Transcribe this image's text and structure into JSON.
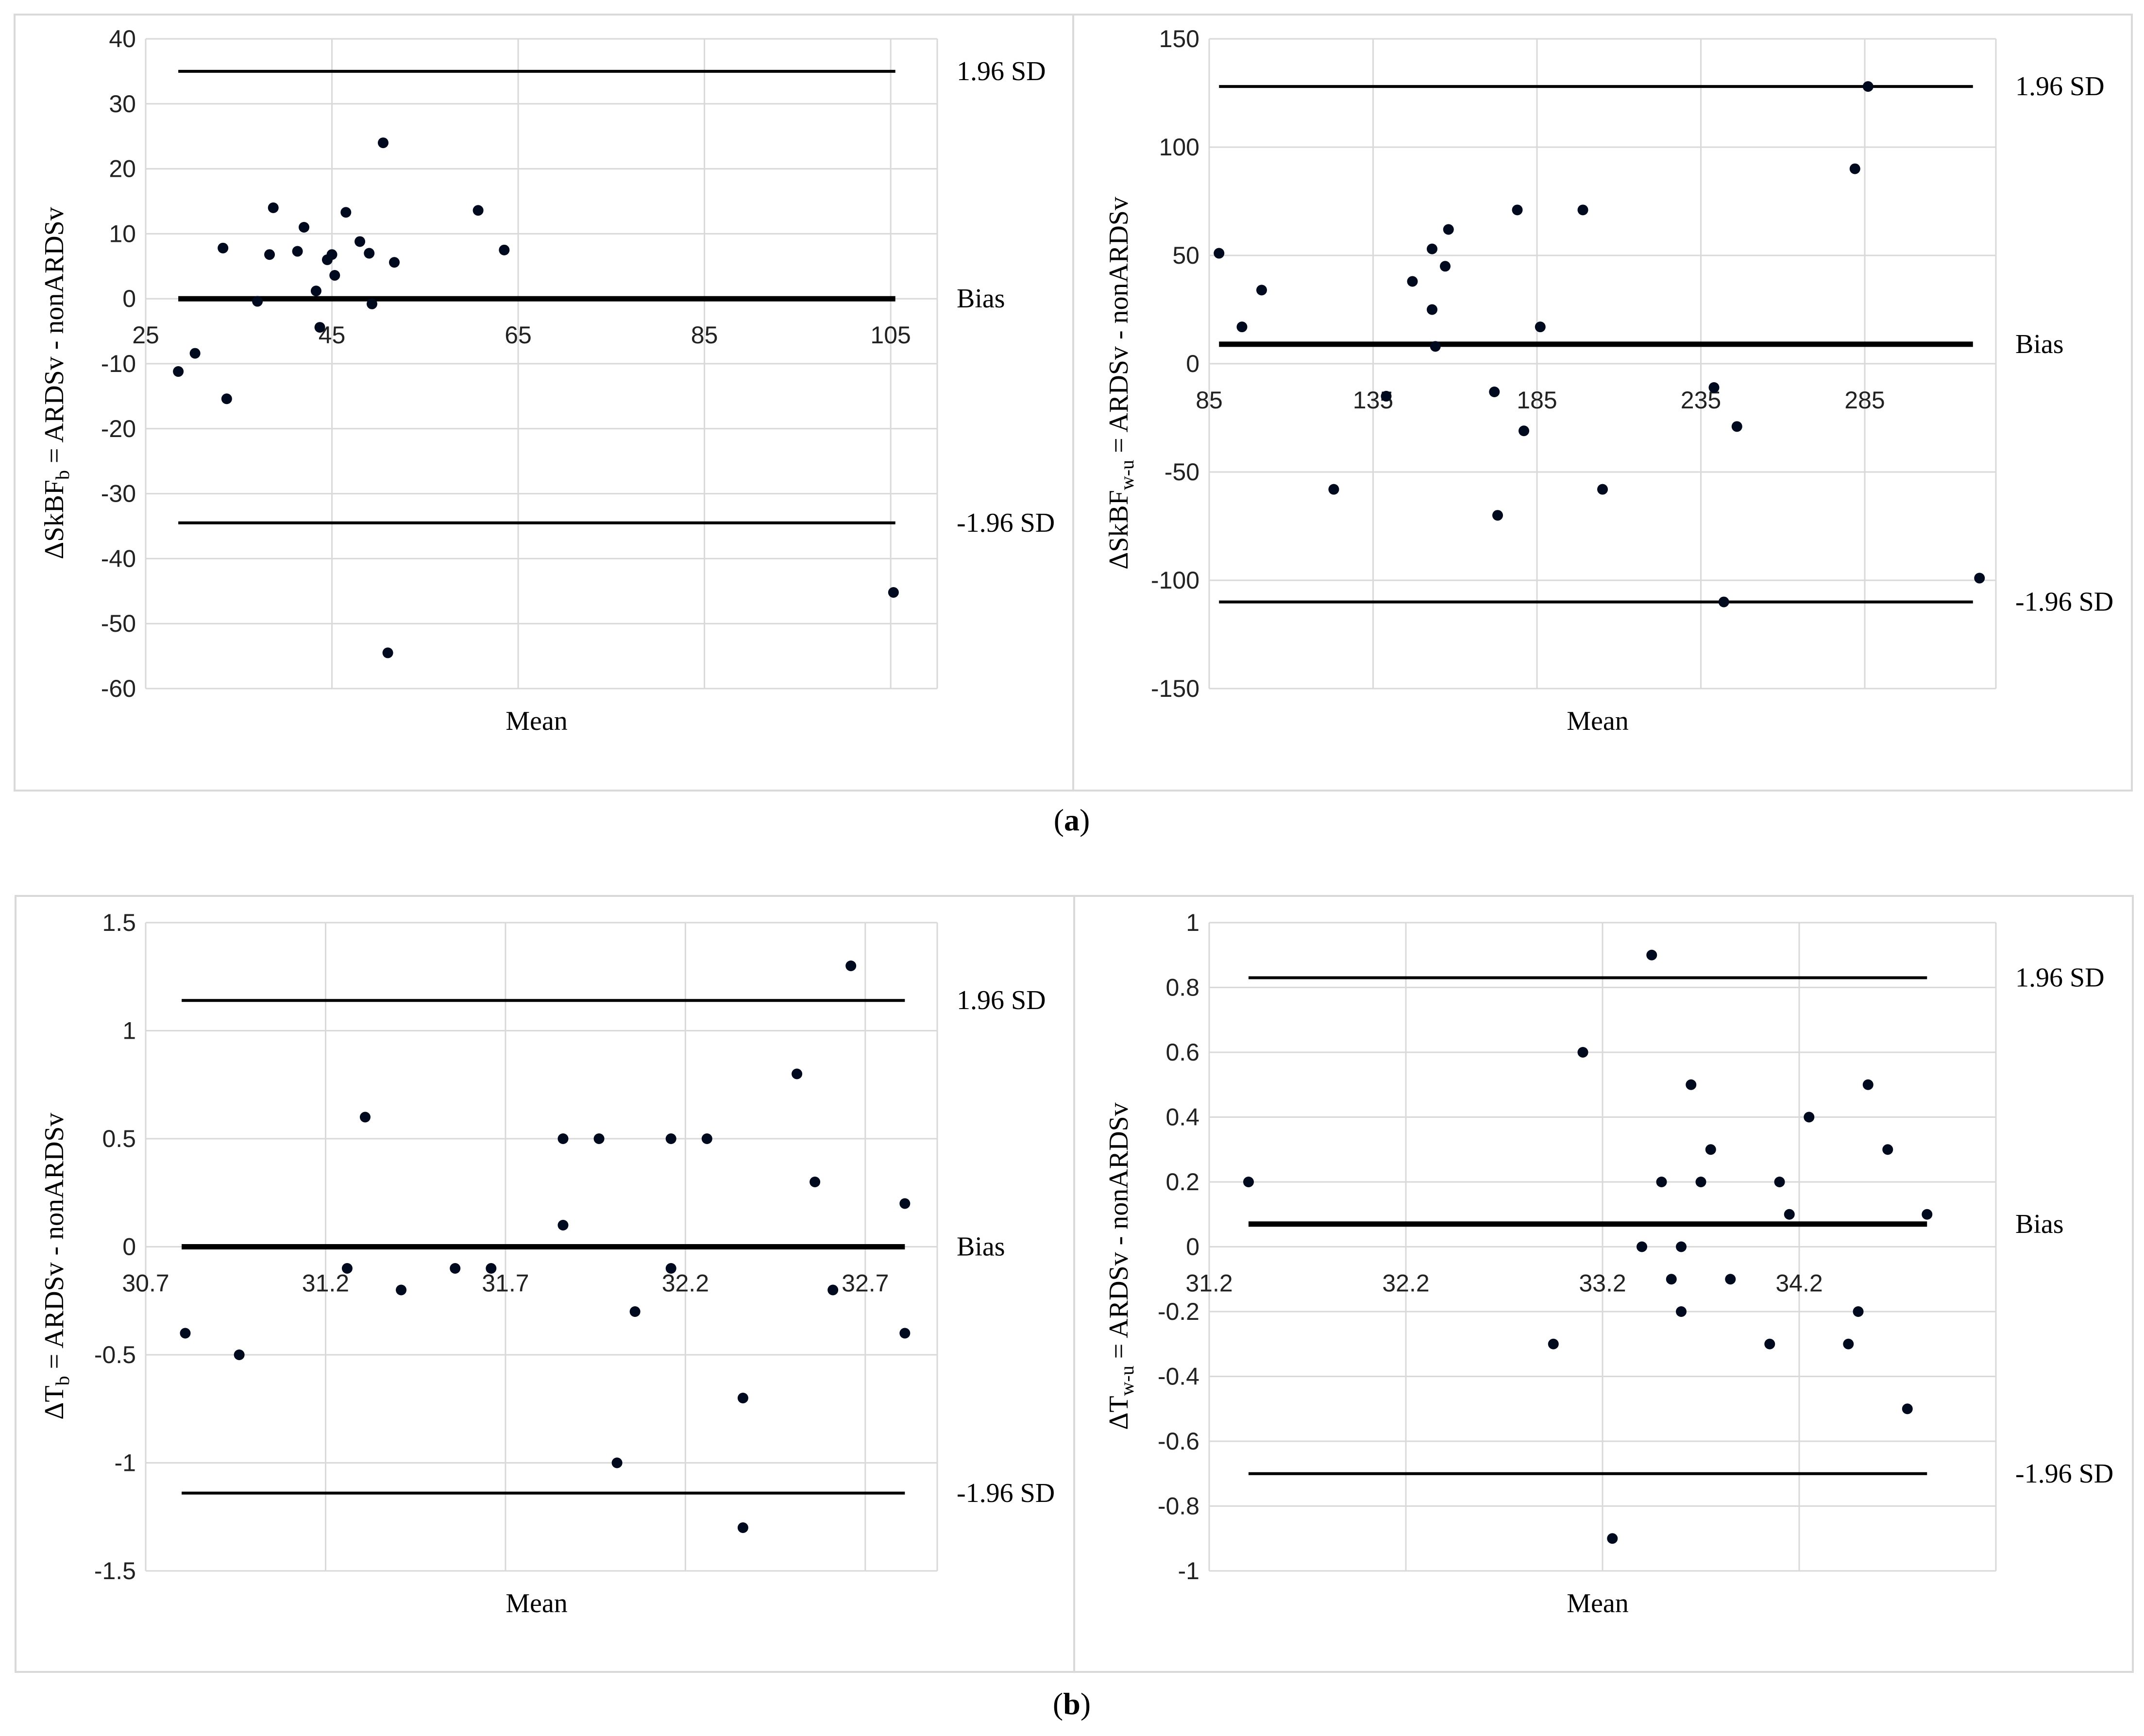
{
  "figure": {
    "label_a": "a",
    "label_b": "b"
  },
  "chart_data": [
    {
      "type": "scatter",
      "panel": "a",
      "xlabel": "Mean",
      "ylabel": "ΔSkBF_b = ARDSv - nonARDSv",
      "xlim": [
        25,
        110
      ],
      "ylim": [
        -60,
        40
      ],
      "x_ticks": [
        25,
        45,
        65,
        85,
        105
      ],
      "y_ticks": [
        -60,
        -50,
        -40,
        -30,
        -20,
        -10,
        0,
        10,
        20,
        30,
        40
      ],
      "reference_lines": [
        {
          "label": "1.96 SD",
          "y": 35,
          "x_range": [
            28.5,
            105.5
          ]
        },
        {
          "label": "Bias",
          "y": 0,
          "x_range": [
            28.5,
            105.5
          ]
        },
        {
          "label": "-1.96 SD",
          "y": -34.5,
          "x_range": [
            28.5,
            105.5
          ]
        }
      ],
      "points": [
        {
          "x": 28.5,
          "y": -11.2
        },
        {
          "x": 30.3,
          "y": -8.4
        },
        {
          "x": 33.3,
          "y": 7.8
        },
        {
          "x": 33.7,
          "y": -15.4
        },
        {
          "x": 37.0,
          "y": -0.4
        },
        {
          "x": 38.3,
          "y": 6.8
        },
        {
          "x": 38.7,
          "y": 14.0
        },
        {
          "x": 41.3,
          "y": 7.3
        },
        {
          "x": 42.0,
          "y": 11.0
        },
        {
          "x": 43.3,
          "y": 1.2
        },
        {
          "x": 43.7,
          "y": -4.4
        },
        {
          "x": 44.5,
          "y": 6.0
        },
        {
          "x": 45.0,
          "y": 6.8
        },
        {
          "x": 45.3,
          "y": 3.6
        },
        {
          "x": 46.5,
          "y": 13.3
        },
        {
          "x": 48.0,
          "y": 8.8
        },
        {
          "x": 49.0,
          "y": 7.0
        },
        {
          "x": 49.3,
          "y": -0.8
        },
        {
          "x": 50.5,
          "y": 24.0
        },
        {
          "x": 51.0,
          "y": -54.5
        },
        {
          "x": 51.7,
          "y": 5.6
        },
        {
          "x": 60.7,
          "y": 13.6
        },
        {
          "x": 63.5,
          "y": 7.5
        },
        {
          "x": 105.3,
          "y": -45.2
        }
      ]
    },
    {
      "type": "scatter",
      "panel": "a",
      "xlabel": "Mean",
      "ylabel": "ΔSkBF_w-u = ARDSv - nonARDSv",
      "xlim": [
        85,
        325
      ],
      "ylim": [
        -150,
        150
      ],
      "x_ticks": [
        85,
        135,
        185,
        235,
        285
      ],
      "y_ticks": [
        -150,
        -100,
        -50,
        0,
        50,
        100,
        150
      ],
      "reference_lines": [
        {
          "label": "1.96 SD",
          "y": 128,
          "x_range": [
            88,
            318
          ]
        },
        {
          "label": "Bias",
          "y": 9,
          "x_range": [
            88,
            318
          ]
        },
        {
          "label": "-1.96 SD",
          "y": -110,
          "x_range": [
            88,
            318
          ]
        }
      ],
      "points": [
        {
          "x": 88,
          "y": 51
        },
        {
          "x": 95,
          "y": 17
        },
        {
          "x": 101,
          "y": 34
        },
        {
          "x": 123,
          "y": -58
        },
        {
          "x": 139,
          "y": -15
        },
        {
          "x": 147,
          "y": 38
        },
        {
          "x": 153,
          "y": 53
        },
        {
          "x": 153,
          "y": 25
        },
        {
          "x": 154,
          "y": 8
        },
        {
          "x": 157,
          "y": 45
        },
        {
          "x": 158,
          "y": 62
        },
        {
          "x": 172,
          "y": -13
        },
        {
          "x": 173,
          "y": -70
        },
        {
          "x": 179,
          "y": 71
        },
        {
          "x": 181,
          "y": -31
        },
        {
          "x": 186,
          "y": 17
        },
        {
          "x": 199,
          "y": 71
        },
        {
          "x": 205,
          "y": -58
        },
        {
          "x": 239,
          "y": -11
        },
        {
          "x": 242,
          "y": -110
        },
        {
          "x": 246,
          "y": -29
        },
        {
          "x": 282,
          "y": 90
        },
        {
          "x": 286,
          "y": 128
        },
        {
          "x": 320,
          "y": -99
        }
      ]
    },
    {
      "type": "scatter",
      "panel": "b",
      "xlabel": "Mean",
      "ylabel": "ΔT_b = ARDSv - nonARDSv",
      "xlim": [
        30.7,
        32.9
      ],
      "ylim": [
        -1.5,
        1.5
      ],
      "x_ticks": [
        30.7,
        31.2,
        31.7,
        32.2,
        32.7
      ],
      "y_ticks": [
        -1.5,
        -1,
        -0.5,
        0,
        0.5,
        1,
        1.5
      ],
      "reference_lines": [
        {
          "label": "1.96 SD",
          "y": 1.14,
          "x_range": [
            30.8,
            32.81
          ]
        },
        {
          "label": "Bias",
          "y": 0,
          "x_range": [
            30.8,
            32.81
          ]
        },
        {
          "label": "-1.96 SD",
          "y": -1.14,
          "x_range": [
            30.8,
            32.81
          ]
        }
      ],
      "points": [
        {
          "x": 30.81,
          "y": -0.4
        },
        {
          "x": 30.96,
          "y": -0.5
        },
        {
          "x": 31.26,
          "y": -0.1
        },
        {
          "x": 31.31,
          "y": 0.6
        },
        {
          "x": 31.41,
          "y": -0.2
        },
        {
          "x": 31.56,
          "y": -0.1
        },
        {
          "x": 31.66,
          "y": -0.1
        },
        {
          "x": 31.86,
          "y": 0.5
        },
        {
          "x": 31.86,
          "y": 0.1
        },
        {
          "x": 31.96,
          "y": 0.5
        },
        {
          "x": 32.01,
          "y": -1.0
        },
        {
          "x": 32.06,
          "y": -0.3
        },
        {
          "x": 32.16,
          "y": 0.5
        },
        {
          "x": 32.16,
          "y": -0.1
        },
        {
          "x": 32.26,
          "y": 0.5
        },
        {
          "x": 32.36,
          "y": -0.7
        },
        {
          "x": 32.36,
          "y": -1.3
        },
        {
          "x": 32.51,
          "y": 0.8
        },
        {
          "x": 32.56,
          "y": 0.3
        },
        {
          "x": 32.61,
          "y": -0.2
        },
        {
          "x": 32.66,
          "y": 1.3
        },
        {
          "x": 32.81,
          "y": 0.2
        },
        {
          "x": 32.81,
          "y": -0.4
        }
      ]
    },
    {
      "type": "scatter",
      "panel": "b",
      "xlabel": "Mean",
      "ylabel": "ΔT_w-u = ARDSv - nonARDSv",
      "xlim": [
        31.2,
        35.2
      ],
      "ylim": [
        -1,
        1
      ],
      "x_ticks": [
        31.2,
        32.2,
        33.2,
        34.2
      ],
      "y_ticks": [
        -1,
        -0.8,
        -0.6,
        -0.4,
        -0.2,
        0,
        0.2,
        0.4,
        0.6,
        0.8,
        1
      ],
      "reference_lines": [
        {
          "label": "1.96 SD",
          "y": 0.83,
          "x_range": [
            31.4,
            34.85
          ]
        },
        {
          "label": "Bias",
          "y": 0.07,
          "x_range": [
            31.4,
            34.85
          ]
        },
        {
          "label": "-1.96 SD",
          "y": -0.7,
          "x_range": [
            31.4,
            34.85
          ]
        }
      ],
      "points": [
        {
          "x": 31.4,
          "y": 0.2
        },
        {
          "x": 32.95,
          "y": -0.3
        },
        {
          "x": 33.1,
          "y": 0.6
        },
        {
          "x": 33.25,
          "y": -0.9
        },
        {
          "x": 33.4,
          "y": 0.0
        },
        {
          "x": 33.45,
          "y": 0.9
        },
        {
          "x": 33.5,
          "y": 0.2
        },
        {
          "x": 33.55,
          "y": -0.1
        },
        {
          "x": 33.6,
          "y": 0.0
        },
        {
          "x": 33.6,
          "y": -0.2
        },
        {
          "x": 33.65,
          "y": 0.5
        },
        {
          "x": 33.7,
          "y": 0.2
        },
        {
          "x": 33.75,
          "y": 0.3
        },
        {
          "x": 33.85,
          "y": -0.1
        },
        {
          "x": 34.05,
          "y": -0.3
        },
        {
          "x": 34.1,
          "y": 0.2
        },
        {
          "x": 34.15,
          "y": 0.1
        },
        {
          "x": 34.25,
          "y": 0.4
        },
        {
          "x": 34.45,
          "y": -0.3
        },
        {
          "x": 34.5,
          "y": -0.2
        },
        {
          "x": 34.55,
          "y": 0.5
        },
        {
          "x": 34.65,
          "y": 0.3
        },
        {
          "x": 34.75,
          "y": -0.5
        },
        {
          "x": 34.85,
          "y": 0.1
        }
      ]
    }
  ]
}
